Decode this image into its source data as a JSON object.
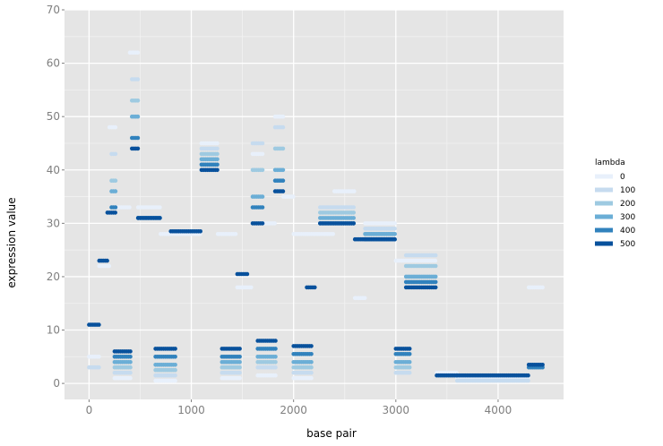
{
  "chart_data": {
    "type": "scatter",
    "xlabel": "base pair",
    "ylabel": "expression value",
    "xlim": [
      -240,
      4640
    ],
    "ylim": [
      -3,
      70
    ],
    "x_ticks": [
      0,
      1000,
      2000,
      3000,
      4000
    ],
    "y_ticks": [
      0,
      10,
      20,
      30,
      40,
      50,
      60,
      70
    ],
    "x_tick_labels": [
      "0",
      "1000",
      "2000",
      "3000",
      "4000"
    ],
    "y_tick_labels": [
      "0",
      "10",
      "20",
      "30",
      "40",
      "50",
      "60",
      "70"
    ],
    "grid": true,
    "legend": {
      "title": "lambda",
      "position": "right",
      "entries": [
        "0",
        "100",
        "200",
        "300",
        "400",
        "500"
      ],
      "colors": [
        "#e8f0fb",
        "#c6dbef",
        "#9ecae1",
        "#6baed6",
        "#3182bd",
        "#08519c"
      ]
    },
    "series": [
      {
        "name": "0",
        "segments": [
          {
            "x0": 0,
            "x1": 100,
            "y": 5
          },
          {
            "x0": 100,
            "x1": 200,
            "y": 22
          },
          {
            "x0": 200,
            "x1": 260,
            "y": 48
          },
          {
            "x0": 260,
            "x1": 400,
            "y": 33
          },
          {
            "x0": 400,
            "x1": 480,
            "y": 62
          },
          {
            "x0": 480,
            "x1": 700,
            "y": 33
          },
          {
            "x0": 700,
            "x1": 1100,
            "y": 28
          },
          {
            "x0": 1100,
            "x1": 1260,
            "y": 45
          },
          {
            "x0": 1260,
            "x1": 1450,
            "y": 28
          },
          {
            "x0": 1450,
            "x1": 1600,
            "y": 18
          },
          {
            "x0": 1600,
            "x1": 1700,
            "y": 43
          },
          {
            "x0": 1700,
            "x1": 1820,
            "y": 30
          },
          {
            "x0": 1820,
            "x1": 1900,
            "y": 50
          },
          {
            "x0": 1900,
            "x1": 2000,
            "y": 35
          },
          {
            "x0": 2000,
            "x1": 2400,
            "y": 28
          },
          {
            "x0": 2400,
            "x1": 2600,
            "y": 36
          },
          {
            "x0": 2600,
            "x1": 2700,
            "y": 16
          },
          {
            "x0": 2700,
            "x1": 3000,
            "y": 30
          },
          {
            "x0": 3000,
            "x1": 3400,
            "y": 23
          },
          {
            "x0": 3400,
            "x1": 3600,
            "y": 2
          },
          {
            "x0": 3600,
            "x1": 4300,
            "y": 1
          },
          {
            "x0": 4300,
            "x1": 4450,
            "y": 18
          },
          {
            "x0": 250,
            "x1": 420,
            "y": 1
          },
          {
            "x0": 650,
            "x1": 850,
            "y": 0.5
          },
          {
            "x0": 1300,
            "x1": 1480,
            "y": 1
          },
          {
            "x0": 1650,
            "x1": 1840,
            "y": 1.5
          },
          {
            "x0": 2000,
            "x1": 2180,
            "y": 1
          }
        ]
      },
      {
        "name": "100",
        "segments": [
          {
            "x0": 0,
            "x1": 100,
            "y": 3
          },
          {
            "x0": 220,
            "x1": 260,
            "y": 43
          },
          {
            "x0": 420,
            "x1": 480,
            "y": 57
          },
          {
            "x0": 480,
            "x1": 700,
            "y": 31
          },
          {
            "x0": 1100,
            "x1": 1260,
            "y": 44
          },
          {
            "x0": 1600,
            "x1": 1700,
            "y": 45
          },
          {
            "x0": 1820,
            "x1": 1900,
            "y": 48
          },
          {
            "x0": 2260,
            "x1": 2600,
            "y": 33
          },
          {
            "x0": 2700,
            "x1": 3000,
            "y": 29
          },
          {
            "x0": 3100,
            "x1": 3400,
            "y": 24
          },
          {
            "x0": 250,
            "x1": 420,
            "y": 2
          },
          {
            "x0": 650,
            "x1": 850,
            "y": 1.5
          },
          {
            "x0": 1300,
            "x1": 1480,
            "y": 2
          },
          {
            "x0": 1650,
            "x1": 1840,
            "y": 3
          },
          {
            "x0": 2000,
            "x1": 2180,
            "y": 2
          },
          {
            "x0": 3000,
            "x1": 3150,
            "y": 2
          },
          {
            "x0": 3600,
            "x1": 4300,
            "y": 0.5
          }
        ]
      },
      {
        "name": "200",
        "segments": [
          {
            "x0": 220,
            "x1": 260,
            "y": 38
          },
          {
            "x0": 420,
            "x1": 480,
            "y": 53
          },
          {
            "x0": 480,
            "x1": 700,
            "y": 31
          },
          {
            "x0": 1100,
            "x1": 1260,
            "y": 43
          },
          {
            "x0": 1600,
            "x1": 1700,
            "y": 40
          },
          {
            "x0": 1820,
            "x1": 1900,
            "y": 44
          },
          {
            "x0": 2260,
            "x1": 2600,
            "y": 32
          },
          {
            "x0": 2700,
            "x1": 3000,
            "y": 28
          },
          {
            "x0": 3100,
            "x1": 3400,
            "y": 22
          },
          {
            "x0": 250,
            "x1": 420,
            "y": 3
          },
          {
            "x0": 650,
            "x1": 850,
            "y": 2.5
          },
          {
            "x0": 1300,
            "x1": 1480,
            "y": 3
          },
          {
            "x0": 1650,
            "x1": 1840,
            "y": 4
          },
          {
            "x0": 2000,
            "x1": 2180,
            "y": 3
          },
          {
            "x0": 3000,
            "x1": 3150,
            "y": 3
          }
        ]
      },
      {
        "name": "300",
        "segments": [
          {
            "x0": 220,
            "x1": 260,
            "y": 36
          },
          {
            "x0": 420,
            "x1": 480,
            "y": 50
          },
          {
            "x0": 480,
            "x1": 700,
            "y": 31
          },
          {
            "x0": 1100,
            "x1": 1260,
            "y": 42
          },
          {
            "x0": 1600,
            "x1": 1700,
            "y": 35
          },
          {
            "x0": 1820,
            "x1": 1900,
            "y": 40
          },
          {
            "x0": 2260,
            "x1": 2600,
            "y": 31
          },
          {
            "x0": 2700,
            "x1": 3000,
            "y": 28
          },
          {
            "x0": 3100,
            "x1": 3400,
            "y": 20
          },
          {
            "x0": 250,
            "x1": 420,
            "y": 4
          },
          {
            "x0": 650,
            "x1": 850,
            "y": 3.5
          },
          {
            "x0": 1300,
            "x1": 1480,
            "y": 4
          },
          {
            "x0": 1650,
            "x1": 1840,
            "y": 5
          },
          {
            "x0": 2000,
            "x1": 2180,
            "y": 4
          },
          {
            "x0": 3000,
            "x1": 3150,
            "y": 4
          }
        ]
      },
      {
        "name": "400",
        "segments": [
          {
            "x0": 220,
            "x1": 260,
            "y": 33
          },
          {
            "x0": 420,
            "x1": 480,
            "y": 46
          },
          {
            "x0": 480,
            "x1": 700,
            "y": 31
          },
          {
            "x0": 1100,
            "x1": 1260,
            "y": 41
          },
          {
            "x0": 1600,
            "x1": 1700,
            "y": 33
          },
          {
            "x0": 1820,
            "x1": 1900,
            "y": 38
          },
          {
            "x0": 2260,
            "x1": 2600,
            "y": 30
          },
          {
            "x0": 2700,
            "x1": 3000,
            "y": 27
          },
          {
            "x0": 3100,
            "x1": 3400,
            "y": 19
          },
          {
            "x0": 250,
            "x1": 420,
            "y": 5
          },
          {
            "x0": 650,
            "x1": 850,
            "y": 5
          },
          {
            "x0": 1300,
            "x1": 1480,
            "y": 5
          },
          {
            "x0": 1650,
            "x1": 1840,
            "y": 6.5
          },
          {
            "x0": 2000,
            "x1": 2180,
            "y": 5.5
          },
          {
            "x0": 3000,
            "x1": 3150,
            "y": 5.5
          },
          {
            "x0": 4300,
            "x1": 4450,
            "y": 3
          }
        ]
      },
      {
        "name": "500",
        "segments": [
          {
            "x0": 0,
            "x1": 100,
            "y": 11
          },
          {
            "x0": 100,
            "x1": 180,
            "y": 23
          },
          {
            "x0": 180,
            "x1": 260,
            "y": 32
          },
          {
            "x0": 420,
            "x1": 480,
            "y": 44
          },
          {
            "x0": 480,
            "x1": 700,
            "y": 31
          },
          {
            "x0": 800,
            "x1": 1100,
            "y": 28.5
          },
          {
            "x0": 1100,
            "x1": 1260,
            "y": 40
          },
          {
            "x0": 1450,
            "x1": 1550,
            "y": 20.5
          },
          {
            "x0": 1600,
            "x1": 1700,
            "y": 30
          },
          {
            "x0": 1820,
            "x1": 1900,
            "y": 36
          },
          {
            "x0": 2130,
            "x1": 2220,
            "y": 18
          },
          {
            "x0": 2260,
            "x1": 2600,
            "y": 30
          },
          {
            "x0": 2600,
            "x1": 2700,
            "y": 27
          },
          {
            "x0": 2700,
            "x1": 3000,
            "y": 27
          },
          {
            "x0": 3100,
            "x1": 3400,
            "y": 18
          },
          {
            "x0": 3400,
            "x1": 3600,
            "y": 1.5
          },
          {
            "x0": 3600,
            "x1": 4300,
            "y": 1.5
          },
          {
            "x0": 4300,
            "x1": 4450,
            "y": 3.5
          },
          {
            "x0": 250,
            "x1": 420,
            "y": 6
          },
          {
            "x0": 650,
            "x1": 850,
            "y": 6.5
          },
          {
            "x0": 1300,
            "x1": 1480,
            "y": 6.5
          },
          {
            "x0": 1650,
            "x1": 1840,
            "y": 8
          },
          {
            "x0": 2000,
            "x1": 2180,
            "y": 7
          },
          {
            "x0": 3000,
            "x1": 3150,
            "y": 6.5
          }
        ]
      }
    ]
  }
}
